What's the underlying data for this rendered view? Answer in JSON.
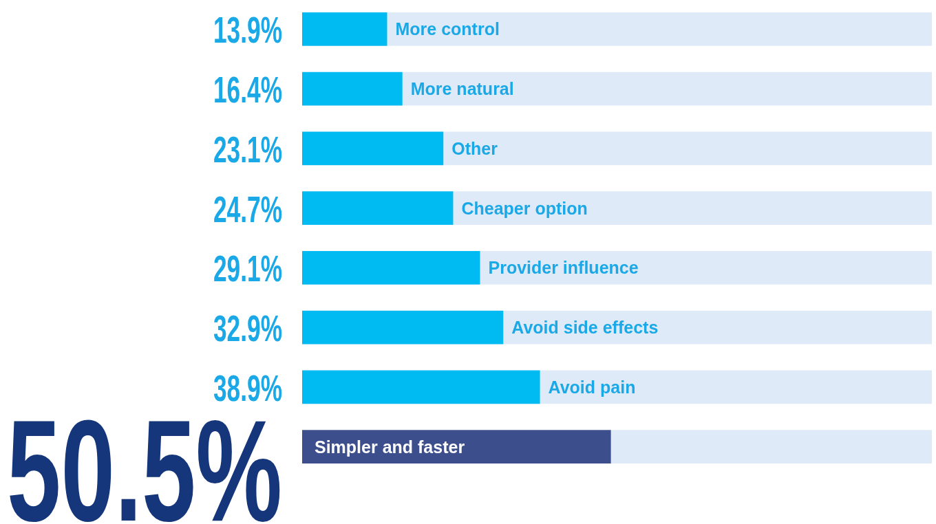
{
  "chart_data": {
    "type": "bar",
    "orientation": "horizontal",
    "categories": [
      "More control",
      "More natural",
      "Other",
      "Cheaper option",
      "Provider influence",
      "Avoid side effects",
      "Avoid pain",
      "Simpler and faster"
    ],
    "values": [
      13.9,
      16.4,
      23.1,
      24.7,
      29.1,
      32.9,
      38.9,
      50.5
    ],
    "value_labels": [
      "13.9%",
      "16.4%",
      "23.1%",
      "24.7%",
      "29.1%",
      "32.9%",
      "38.9%",
      "50.5%"
    ],
    "colors": [
      "#00bbf2",
      "#00bbf2",
      "#00bbf2",
      "#00bbf2",
      "#00bbf2",
      "#00bbf2",
      "#00bbf2",
      "#3c4f8c"
    ],
    "xlim": [
      0,
      103
    ],
    "tick_labels": false
  }
}
